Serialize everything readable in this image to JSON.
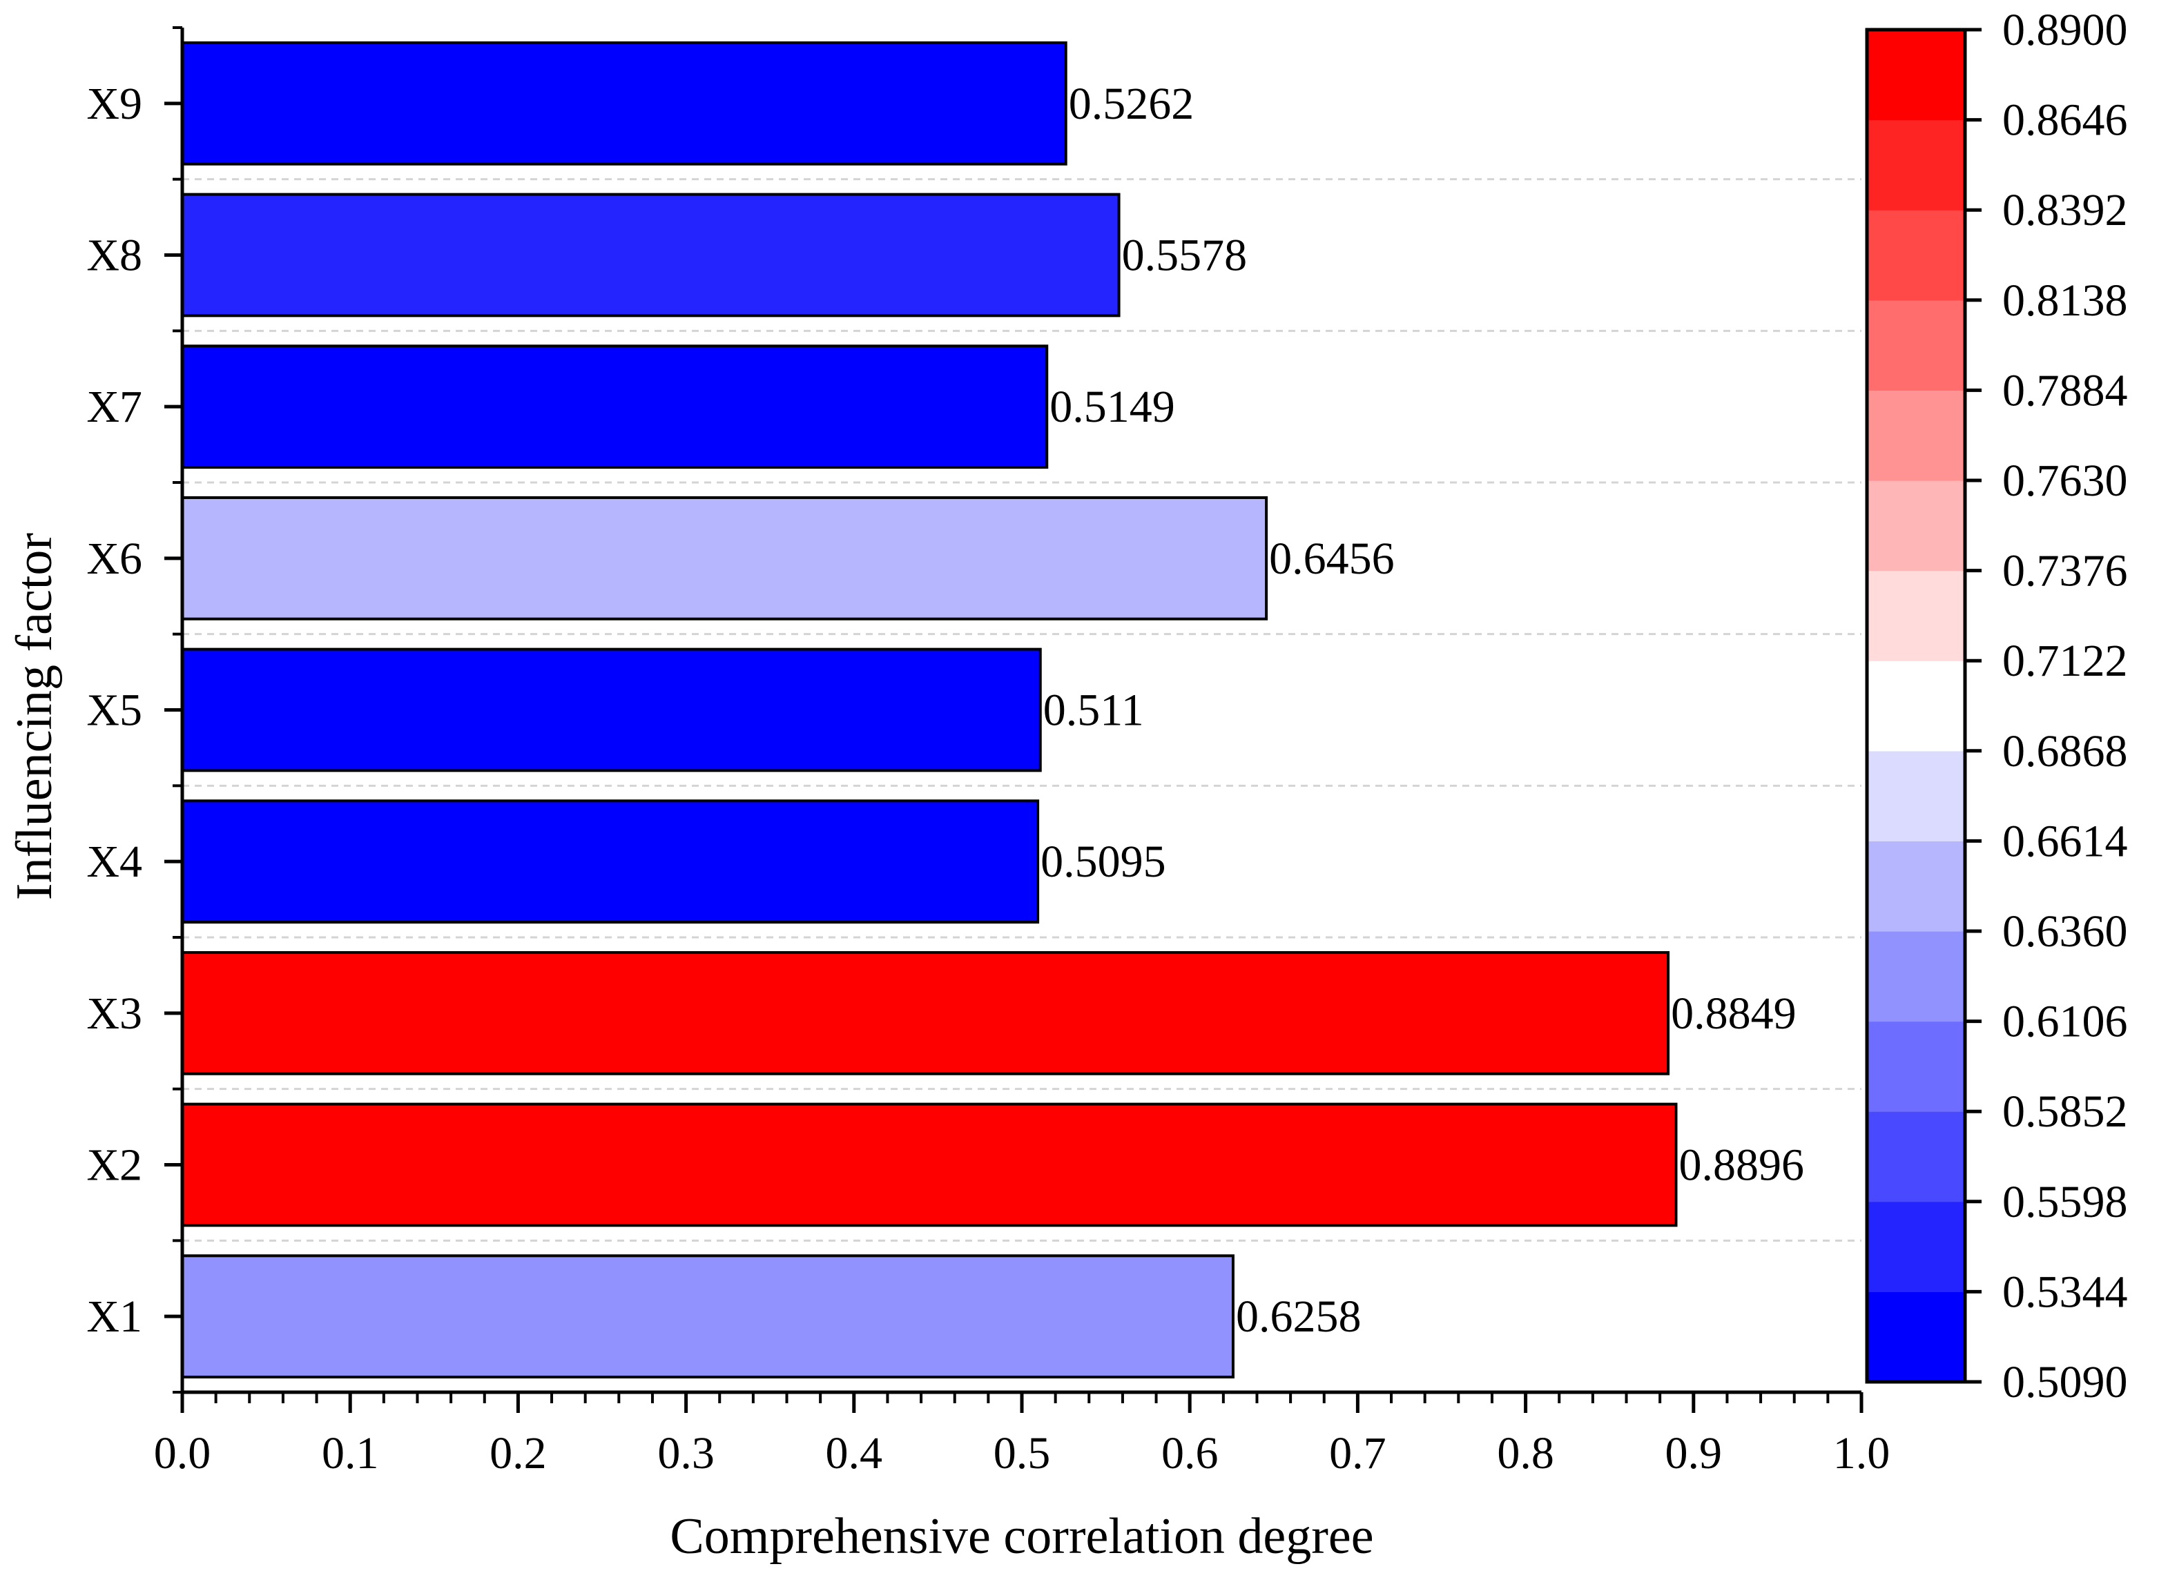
{
  "chart_data": {
    "type": "bar",
    "orientation": "horizontal",
    "categories": [
      "X1",
      "X2",
      "X3",
      "X4",
      "X5",
      "X6",
      "X7",
      "X8",
      "X9"
    ],
    "values": [
      0.6258,
      0.8896,
      0.8849,
      0.5095,
      0.511,
      0.6456,
      0.5149,
      0.5578,
      0.5262
    ],
    "value_labels": [
      "0.6258",
      "0.8896",
      "0.8849",
      "0.5095",
      "0.511",
      "0.6456",
      "0.5149",
      "0.5578",
      "0.5262"
    ],
    "xlabel": "Comprehensive correlation degree",
    "ylabel": "Influencing factor",
    "xlim": [
      0.0,
      1.0
    ],
    "x_ticks": [
      "0.0",
      "0.1",
      "0.2",
      "0.3",
      "0.4",
      "0.5",
      "0.6",
      "0.7",
      "0.8",
      "0.9",
      "1.0"
    ],
    "grid": "horizontal dashed between categories",
    "colorbar": {
      "min": 0.509,
      "max": 0.89,
      "tick_labels": [
        "0.5090",
        "0.5344",
        "0.5598",
        "0.5852",
        "0.6106",
        "0.6360",
        "0.6614",
        "0.6868",
        "0.7122",
        "0.7376",
        "0.7630",
        "0.7884",
        "0.8138",
        "0.8392",
        "0.8646",
        "0.8900"
      ],
      "low_color": "#0000ff",
      "mid_color": "#ffffff",
      "high_color": "#ff0000",
      "mid_value": 0.6995,
      "levels": 15
    }
  }
}
